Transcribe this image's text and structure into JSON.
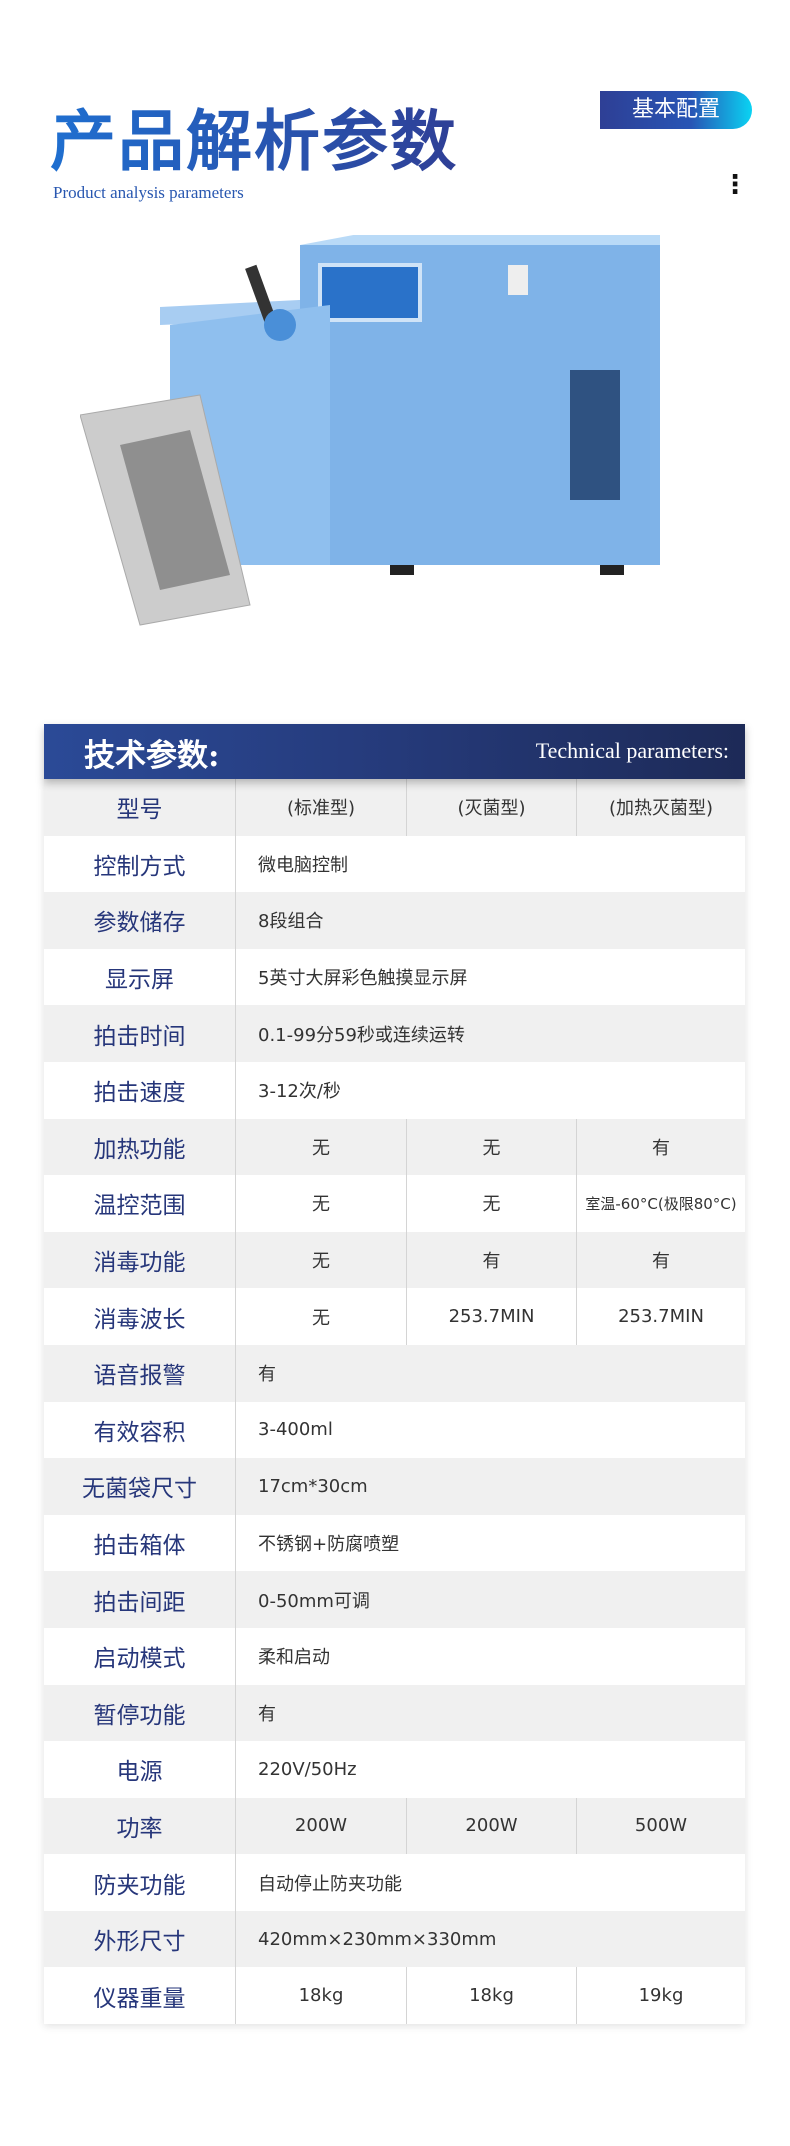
{
  "header": {
    "title": "产品解析参数",
    "subtitle": "Product analysis parameters",
    "badge": "基本配置",
    "more_icon": "vertical-dots-icon"
  },
  "product_image": {
    "description_icon": "stomacher-homogenizer-photo",
    "body_color": "#7fb3e8"
  },
  "table": {
    "title_cn": "技术参数:",
    "title_en": "Technical parameters:",
    "colors": {
      "header": "#253a7a",
      "label": "#26367a"
    },
    "rows": [
      {
        "label": "型号",
        "values": [
          "(标准型)",
          "(灭菌型)",
          "(加热灭菌型)"
        ]
      },
      {
        "label": "控制方式",
        "value": "微电脑控制"
      },
      {
        "label": "参数储存",
        "value": "8段组合"
      },
      {
        "label": "显示屏",
        "value": "5英寸大屏彩色触摸显示屏"
      },
      {
        "label": "拍击时间",
        "value": "0.1-99分59秒或连续运转"
      },
      {
        "label": "拍击速度",
        "value": "3-12次/秒"
      },
      {
        "label": "加热功能",
        "values": [
          "无",
          "无",
          "有"
        ]
      },
      {
        "label": "温控范围",
        "values": [
          "无",
          "无",
          "室温-60°C(极限80°C)"
        ]
      },
      {
        "label": "消毒功能",
        "values": [
          "无",
          "有",
          "有"
        ]
      },
      {
        "label": "消毒波长",
        "values": [
          "无",
          "253.7MIN",
          "253.7MIN"
        ]
      },
      {
        "label": "语音报警",
        "value": "有"
      },
      {
        "label": "有效容积",
        "value": "3-400ml"
      },
      {
        "label": "无菌袋尺寸",
        "value": "17cm*30cm"
      },
      {
        "label": "拍击箱体",
        "value": "不锈钢+防腐喷塑"
      },
      {
        "label": "拍击间距",
        "value": "0-50mm可调"
      },
      {
        "label": "启动模式",
        "value": "柔和启动"
      },
      {
        "label": "暂停功能",
        "value": "有"
      },
      {
        "label": "电源",
        "value": "220V/50Hz"
      },
      {
        "label": "功率",
        "values": [
          "200W",
          "200W",
          "500W"
        ]
      },
      {
        "label": "防夹功能",
        "value": "自动停止防夹功能"
      },
      {
        "label": "外形尺寸",
        "value": "420mm×230mm×330mm"
      },
      {
        "label": "仪器重量",
        "values": [
          "18kg",
          "18kg",
          "19kg"
        ]
      }
    ]
  }
}
